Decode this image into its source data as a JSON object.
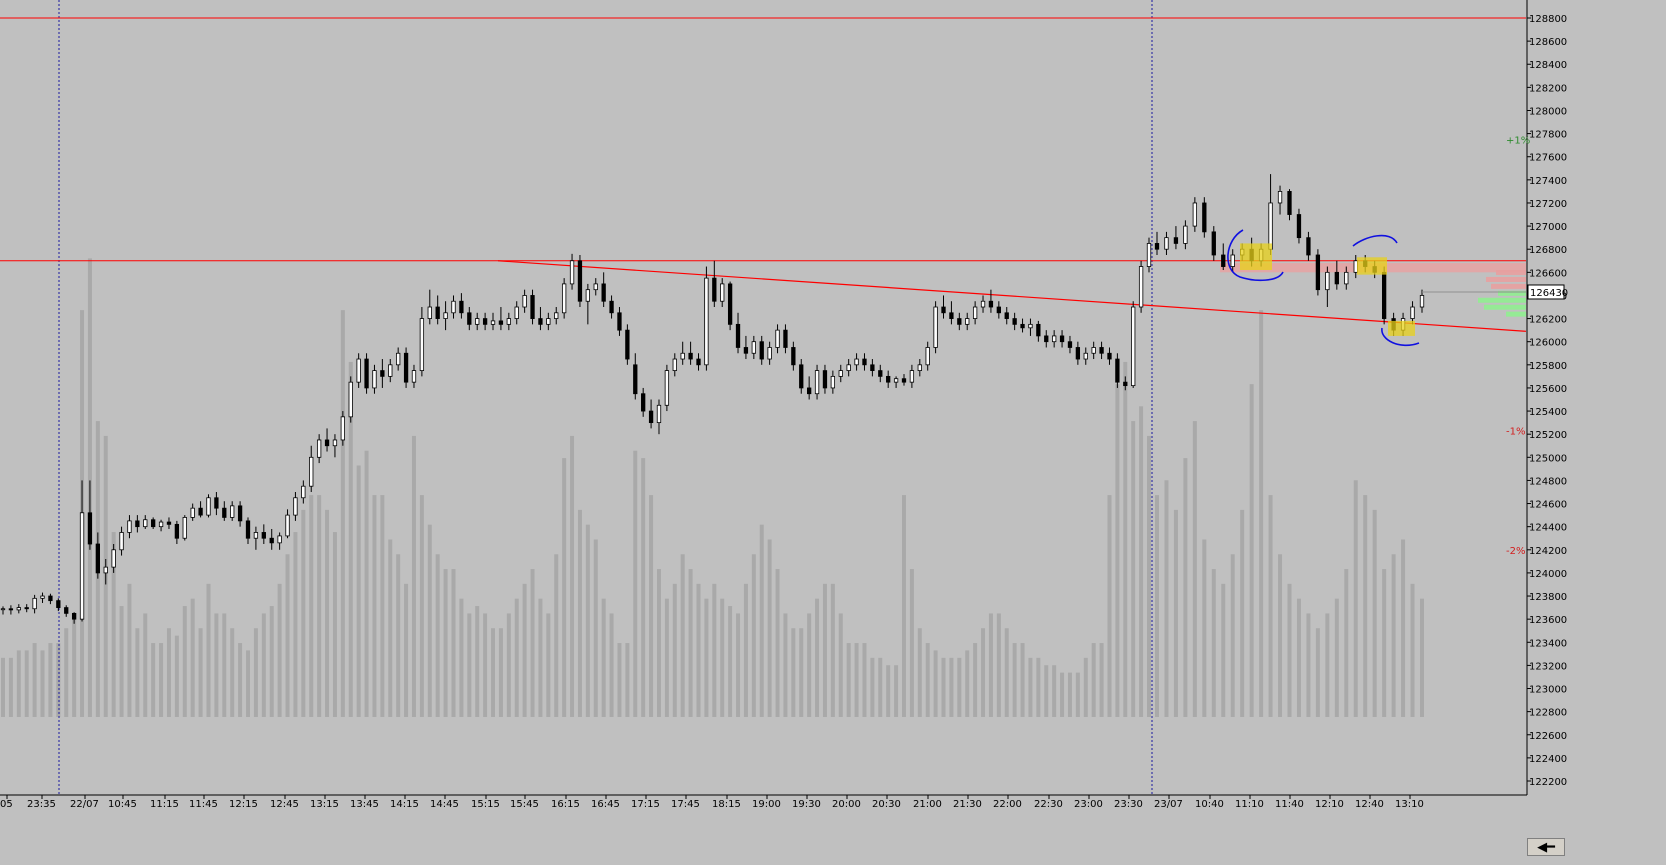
{
  "chart_data": {
    "type": "candlestick",
    "price_axis": {
      "ticks": [
        128800,
        128600,
        128400,
        128200,
        128000,
        127800,
        127600,
        127400,
        127200,
        127000,
        126800,
        126600,
        126400,
        126200,
        126000,
        125800,
        125600,
        125400,
        125200,
        125000,
        124800,
        124600,
        124400,
        124200,
        124000,
        123800,
        123600,
        123400,
        123200,
        123000,
        122800,
        122600,
        122400,
        122200
      ],
      "current_price_label": "126430",
      "current_price": 126430,
      "range": [
        122150,
        128850
      ]
    },
    "percent_labels": [
      {
        "label": "+1%",
        "price": 127750,
        "color": "#2e8b2e"
      },
      {
        "label": "-1%",
        "price": 125230,
        "color": "#d21e1e"
      },
      {
        "label": "-2%",
        "price": 124200,
        "color": "#d21e1e"
      }
    ],
    "time_axis": {
      "labels": [
        "05",
        "23:35",
        "22/07",
        "10:45",
        "11:15",
        "11:45",
        "12:15",
        "12:45",
        "13:15",
        "13:45",
        "14:15",
        "14:45",
        "15:15",
        "15:45",
        "16:15",
        "16:45",
        "17:15",
        "17:45",
        "18:15",
        "19:00",
        "19:30",
        "20:00",
        "20:30",
        "21:00",
        "21:30",
        "22:00",
        "22:30",
        "23:00",
        "23:30",
        "23/07",
        "10:40",
        "11:10",
        "11:40",
        "12:10",
        "12:40",
        "13:10"
      ]
    },
    "session_separators": [
      "22/07",
      "23/07"
    ],
    "horizontal_lines": [
      {
        "price": 128800,
        "color": "#ff0000"
      },
      {
        "price": 126700,
        "color": "#ff0000"
      }
    ],
    "trendline": {
      "from_price": 126700,
      "to_price": 126090,
      "color": "#ff0000"
    },
    "highlight_zone": {
      "price_low": 126600,
      "price_high": 126680,
      "color": "#e8a0a0"
    },
    "candles_note": "OHLC values approximated from the image",
    "candles_ohlc": [
      [
        123690,
        123710,
        123640,
        123690
      ],
      [
        123690,
        123720,
        123640,
        123680
      ],
      [
        123680,
        123730,
        123650,
        123700
      ],
      [
        123700,
        123730,
        123660,
        123690
      ],
      [
        123690,
        123810,
        123650,
        123780
      ],
      [
        123780,
        123830,
        123740,
        123800
      ],
      [
        123800,
        123820,
        123730,
        123760
      ],
      [
        123760,
        123780,
        123670,
        123700
      ],
      [
        123700,
        123720,
        123620,
        123650
      ],
      [
        123650,
        123660,
        123560,
        123600
      ],
      [
        123600,
        124800,
        123580,
        124520
      ],
      [
        124520,
        124800,
        124200,
        124250
      ],
      [
        124250,
        124350,
        123950,
        124000
      ],
      [
        124000,
        124120,
        123900,
        124050
      ],
      [
        124050,
        124250,
        124000,
        124200
      ],
      [
        124200,
        124400,
        124150,
        124350
      ],
      [
        124350,
        124500,
        124300,
        124450
      ],
      [
        124450,
        124500,
        124350,
        124400
      ],
      [
        124400,
        124500,
        124380,
        124460
      ],
      [
        124460,
        124480,
        124380,
        124400
      ],
      [
        124400,
        124460,
        124360,
        124440
      ],
      [
        124440,
        124480,
        124380,
        124420
      ],
      [
        124420,
        124450,
        124250,
        124300
      ],
      [
        124300,
        124500,
        124280,
        124480
      ],
      [
        124480,
        124600,
        124450,
        124560
      ],
      [
        124560,
        124620,
        124480,
        124500
      ],
      [
        124500,
        124680,
        124480,
        124650
      ],
      [
        124650,
        124700,
        124500,
        124560
      ],
      [
        124560,
        124620,
        124450,
        124480
      ],
      [
        124480,
        124620,
        124450,
        124580
      ],
      [
        124580,
        124620,
        124400,
        124450
      ],
      [
        124450,
        124480,
        124250,
        124300
      ],
      [
        124300,
        124400,
        124200,
        124350
      ],
      [
        124350,
        124420,
        124250,
        124300
      ],
      [
        124300,
        124380,
        124200,
        124260
      ],
      [
        124260,
        124350,
        124200,
        124320
      ],
      [
        124320,
        124550,
        124300,
        124500
      ],
      [
        124500,
        124700,
        124450,
        124650
      ],
      [
        124650,
        124800,
        124600,
        124750
      ],
      [
        124750,
        125100,
        124700,
        125000
      ],
      [
        125000,
        125200,
        124950,
        125150
      ],
      [
        125150,
        125250,
        125050,
        125100
      ],
      [
        125100,
        125200,
        125000,
        125150
      ],
      [
        125150,
        125400,
        125100,
        125350
      ],
      [
        125350,
        125700,
        125300,
        125650
      ],
      [
        125650,
        125900,
        125600,
        125850
      ],
      [
        125850,
        125900,
        125550,
        125600
      ],
      [
        125600,
        125800,
        125550,
        125750
      ],
      [
        125750,
        125850,
        125600,
        125700
      ],
      [
        125700,
        125850,
        125650,
        125800
      ],
      [
        125800,
        125950,
        125750,
        125900
      ],
      [
        125900,
        125950,
        125600,
        125650
      ],
      [
        125650,
        125800,
        125600,
        125750
      ],
      [
        125750,
        126300,
        125700,
        126200
      ],
      [
        126200,
        126450,
        126150,
        126300
      ],
      [
        126300,
        126400,
        126150,
        126200
      ],
      [
        126200,
        126350,
        126100,
        126250
      ],
      [
        126250,
        126400,
        126200,
        126350
      ],
      [
        126350,
        126420,
        126200,
        126250
      ],
      [
        126250,
        126300,
        126100,
        126150
      ],
      [
        126150,
        126250,
        126100,
        126200
      ],
      [
        126200,
        126250,
        126100,
        126150
      ],
      [
        126150,
        126250,
        126100,
        126180
      ],
      [
        126180,
        126300,
        126100,
        126150
      ],
      [
        126150,
        126250,
        126100,
        126200
      ],
      [
        126200,
        126350,
        126150,
        126300
      ],
      [
        126300,
        126450,
        126250,
        126400
      ],
      [
        126400,
        126450,
        126150,
        126200
      ],
      [
        126200,
        126300,
        126100,
        126150
      ],
      [
        126150,
        126250,
        126100,
        126200
      ],
      [
        126200,
        126300,
        126150,
        126250
      ],
      [
        126250,
        126550,
        126200,
        126500
      ],
      [
        126500,
        126760,
        126450,
        126700
      ],
      [
        126700,
        126750,
        126300,
        126350
      ],
      [
        126350,
        126500,
        126150,
        126450
      ],
      [
        126450,
        126550,
        126400,
        126500
      ],
      [
        126500,
        126600,
        126300,
        126350
      ],
      [
        126350,
        126400,
        126200,
        126250
      ],
      [
        126250,
        126300,
        126050,
        126100
      ],
      [
        126100,
        126150,
        125800,
        125850
      ],
      [
        125800,
        125900,
        125500,
        125550
      ],
      [
        125550,
        125600,
        125350,
        125400
      ],
      [
        125400,
        125500,
        125250,
        125300
      ],
      [
        125300,
        125500,
        125200,
        125450
      ],
      [
        125450,
        125800,
        125400,
        125750
      ],
      [
        125750,
        125900,
        125700,
        125850
      ],
      [
        125850,
        126000,
        125800,
        125900
      ],
      [
        125900,
        126000,
        125800,
        125850
      ],
      [
        125850,
        125900,
        125750,
        125800
      ],
      [
        125800,
        126650,
        125750,
        126550
      ],
      [
        126550,
        126700,
        126300,
        126350
      ],
      [
        126350,
        126550,
        126300,
        126500
      ],
      [
        126500,
        126520,
        126100,
        126150
      ],
      [
        126150,
        126250,
        125900,
        125950
      ],
      [
        125950,
        126050,
        125850,
        125900
      ],
      [
        125900,
        126050,
        125850,
        126000
      ],
      [
        126000,
        126050,
        125800,
        125850
      ],
      [
        125850,
        126000,
        125800,
        125950
      ],
      [
        125950,
        126150,
        125900,
        126100
      ],
      [
        126100,
        126150,
        125900,
        125950
      ],
      [
        125950,
        126000,
        125750,
        125800
      ],
      [
        125800,
        125850,
        125550,
        125600
      ],
      [
        125600,
        125700,
        125500,
        125550
      ],
      [
        125550,
        125800,
        125500,
        125750
      ],
      [
        125750,
        125800,
        125550,
        125600
      ],
      [
        125600,
        125750,
        125550,
        125700
      ],
      [
        125700,
        125800,
        125650,
        125750
      ],
      [
        125750,
        125850,
        125700,
        125800
      ],
      [
        125800,
        125900,
        125750,
        125850
      ],
      [
        125850,
        125900,
        125750,
        125800
      ],
      [
        125800,
        125850,
        125700,
        125750
      ],
      [
        125750,
        125800,
        125650,
        125700
      ],
      [
        125700,
        125750,
        125600,
        125650
      ],
      [
        125650,
        125700,
        125600,
        125680
      ],
      [
        125680,
        125720,
        125620,
        125650
      ],
      [
        125650,
        125800,
        125600,
        125750
      ],
      [
        125750,
        125850,
        125700,
        125800
      ],
      [
        125800,
        126000,
        125750,
        125950
      ],
      [
        125950,
        126350,
        125900,
        126300
      ],
      [
        126300,
        126400,
        126200,
        126250
      ],
      [
        126250,
        126350,
        126150,
        126200
      ],
      [
        126200,
        126250,
        126100,
        126150
      ],
      [
        126150,
        126250,
        126100,
        126200
      ],
      [
        126200,
        126350,
        126150,
        126300
      ],
      [
        126300,
        126400,
        126250,
        126350
      ],
      [
        126350,
        126450,
        126250,
        126300
      ],
      [
        126300,
        126350,
        126200,
        126250
      ],
      [
        126250,
        126300,
        126150,
        126200
      ],
      [
        126200,
        126250,
        126100,
        126150
      ],
      [
        126150,
        126200,
        126080,
        126120
      ],
      [
        126120,
        126200,
        126050,
        126150
      ],
      [
        126150,
        126180,
        126000,
        126050
      ],
      [
        126050,
        126100,
        125950,
        126000
      ],
      [
        126000,
        126100,
        125950,
        126050
      ],
      [
        126050,
        126100,
        125950,
        126000
      ],
      [
        126000,
        126050,
        125900,
        125950
      ],
      [
        125950,
        126000,
        125800,
        125850
      ],
      [
        125850,
        125950,
        125800,
        125900
      ],
      [
        125900,
        126000,
        125850,
        125950
      ],
      [
        125950,
        126000,
        125850,
        125900
      ],
      [
        125900,
        125950,
        125800,
        125850
      ],
      [
        125850,
        125900,
        125600,
        125650
      ],
      [
        125650,
        125700,
        125580,
        125620
      ],
      [
        125620,
        126350,
        125600,
        126300
      ],
      [
        126300,
        126700,
        126250,
        126650
      ],
      [
        126650,
        126900,
        126600,
        126850
      ],
      [
        126850,
        126950,
        126750,
        126800
      ],
      [
        126800,
        126950,
        126750,
        126900
      ],
      [
        126900,
        127000,
        126800,
        126850
      ],
      [
        126850,
        127050,
        126800,
        127000
      ],
      [
        127000,
        127250,
        126950,
        127200
      ],
      [
        127200,
        127250,
        126900,
        126950
      ],
      [
        126950,
        127000,
        126700,
        126750
      ],
      [
        126750,
        126850,
        126620,
        126650
      ],
      [
        126650,
        126800,
        126600,
        126750
      ],
      [
        126750,
        126850,
        126700,
        126800
      ],
      [
        126800,
        126900,
        126650,
        126700
      ],
      [
        126700,
        126850,
        126650,
        126800
      ],
      [
        126800,
        127450,
        126750,
        127200
      ],
      [
        127200,
        127350,
        127100,
        127300
      ],
      [
        127300,
        127320,
        127050,
        127100
      ],
      [
        127100,
        127150,
        126850,
        126900
      ],
      [
        126900,
        126950,
        126700,
        126750
      ],
      [
        126750,
        126800,
        126400,
        126450
      ],
      [
        126450,
        126650,
        126300,
        126600
      ],
      [
        126600,
        126700,
        126450,
        126500
      ],
      [
        126500,
        126650,
        126450,
        126600
      ],
      [
        126600,
        126750,
        126550,
        126700
      ],
      [
        126700,
        126750,
        126600,
        126650
      ],
      [
        126650,
        126700,
        126550,
        126600
      ],
      [
        126600,
        126650,
        126150,
        126200
      ],
      [
        126200,
        126250,
        126050,
        126100
      ],
      [
        126100,
        126250,
        126050,
        126200
      ],
      [
        126200,
        126350,
        126150,
        126300
      ],
      [
        126300,
        126450,
        126250,
        126400
      ]
    ],
    "volume_note": "volume bars approximated, relative units",
    "volumes": [
      8,
      8,
      9,
      9,
      10,
      9,
      10,
      10,
      12,
      14,
      55,
      62,
      40,
      38,
      25,
      15,
      18,
      12,
      14,
      10,
      10,
      12,
      11,
      15,
      16,
      12,
      18,
      14,
      14,
      12,
      10,
      9,
      12,
      14,
      15,
      18,
      22,
      25,
      28,
      30,
      30,
      28,
      25,
      55,
      48,
      34,
      36,
      30,
      30,
      24,
      22,
      18,
      38,
      30,
      26,
      22,
      20,
      20,
      16,
      14,
      15,
      14,
      12,
      12,
      14,
      16,
      18,
      20,
      16,
      14,
      22,
      35,
      38,
      28,
      26,
      24,
      16,
      14,
      10,
      10,
      36,
      35,
      30,
      20,
      16,
      18,
      22,
      20,
      18,
      16,
      18,
      16,
      15,
      14,
      18,
      22,
      26,
      24,
      20,
      14,
      12,
      12,
      14,
      16,
      18,
      18,
      14,
      10,
      10,
      10,
      8,
      8,
      7,
      7,
      30,
      20,
      12,
      10,
      9,
      8,
      8,
      8,
      9,
      10,
      12,
      14,
      14,
      12,
      10,
      10,
      8,
      8,
      7,
      7,
      6,
      6,
      6,
      8,
      10,
      10,
      30,
      45,
      48,
      40,
      42,
      38,
      30,
      32,
      28,
      35,
      40,
      24,
      20,
      18,
      22,
      28,
      45,
      55,
      30,
      22,
      18,
      16,
      14,
      12,
      14,
      16,
      20,
      32,
      30,
      28,
      20,
      22,
      24,
      18,
      16
    ]
  },
  "scroll_button": {
    "glyph": "◀━"
  }
}
